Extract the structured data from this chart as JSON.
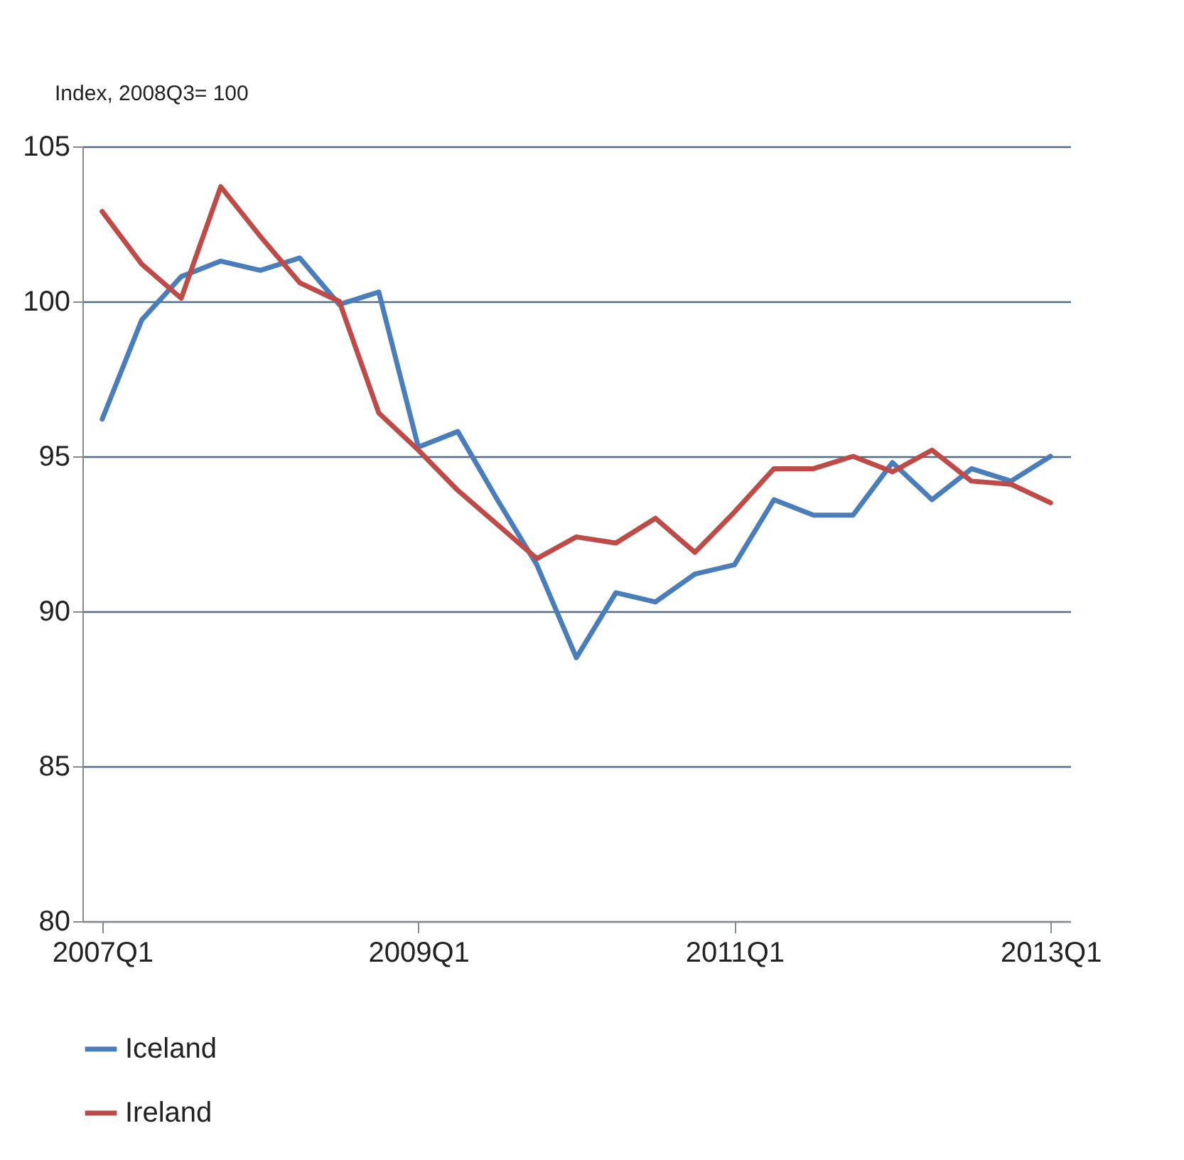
{
  "chart_data": {
    "type": "line",
    "ylabel": "Index, 2008Q3= 100",
    "categories": [
      "2007Q1",
      null,
      null,
      null,
      null,
      null,
      null,
      null,
      "2009Q1",
      null,
      null,
      null,
      null,
      null,
      null,
      null,
      "2011Q1",
      null,
      null,
      null,
      null,
      null,
      null,
      null,
      "2013Q1"
    ],
    "series": [
      {
        "name": "Iceland",
        "color": "#4a7ebb",
        "values": [
          96.2,
          99.4,
          100.8,
          101.3,
          101.0,
          101.4,
          99.9,
          100.3,
          95.3,
          95.8,
          93.6,
          91.5,
          88.5,
          90.6,
          90.3,
          91.2,
          91.5,
          93.6,
          93.1,
          93.1,
          94.8,
          93.6,
          94.6,
          94.2,
          95.0
        ]
      },
      {
        "name": "Ireland",
        "color": "#be4b48",
        "values": [
          102.9,
          101.2,
          100.1,
          103.7,
          102.1,
          100.6,
          100.0,
          96.4,
          95.2,
          93.9,
          92.8,
          91.7,
          92.4,
          92.2,
          93.0,
          91.9,
          93.2,
          94.6,
          94.6,
          95.0,
          94.5,
          95.2,
          94.2,
          94.1,
          93.5
        ]
      }
    ],
    "ylim": [
      80,
      105
    ],
    "yticks": [
      80,
      85,
      90,
      95,
      100,
      105
    ],
    "grid": "y",
    "legend": "bottom",
    "line_style": "solid"
  }
}
